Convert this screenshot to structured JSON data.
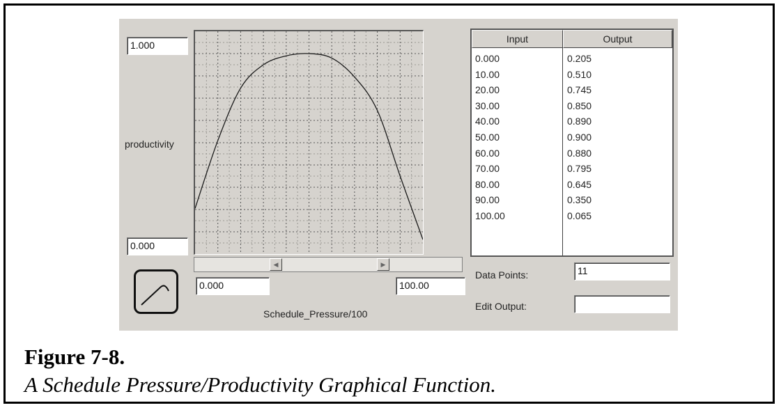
{
  "graph": {
    "y_max_value": "1.000",
    "y_min_value": "0.000",
    "y_label": "productivity",
    "x_min_value": "0.000",
    "x_max_value": "100.00",
    "x_label": "Schedule_Pressure/100"
  },
  "table": {
    "headers": {
      "input": "Input",
      "output": "Output"
    },
    "inputs": [
      "0.000",
      "10.00",
      "20.00",
      "30.00",
      "40.00",
      "50.00",
      "60.00",
      "70.00",
      "80.00",
      "90.00",
      "100.00"
    ],
    "outputs": [
      "0.205",
      "0.510",
      "0.745",
      "0.850",
      "0.890",
      "0.900",
      "0.880",
      "0.795",
      "0.645",
      "0.350",
      "0.065"
    ]
  },
  "controls": {
    "data_points_label": "Data Points:",
    "data_points_value": "11",
    "edit_output_label": "Edit Output:",
    "edit_output_value": ""
  },
  "chart_data": {
    "type": "line",
    "x": [
      0,
      10,
      20,
      30,
      40,
      50,
      60,
      70,
      80,
      90,
      100
    ],
    "y": [
      0.205,
      0.51,
      0.745,
      0.85,
      0.89,
      0.9,
      0.88,
      0.795,
      0.645,
      0.35,
      0.065
    ],
    "xlabel": "Schedule_Pressure/100",
    "ylabel": "productivity",
    "xlim": [
      0,
      100
    ],
    "ylim": [
      0,
      1
    ],
    "grid": true
  },
  "caption": {
    "title": "Figure 7-8.",
    "text": "A Schedule Pressure/Productivity Graphical Function."
  }
}
